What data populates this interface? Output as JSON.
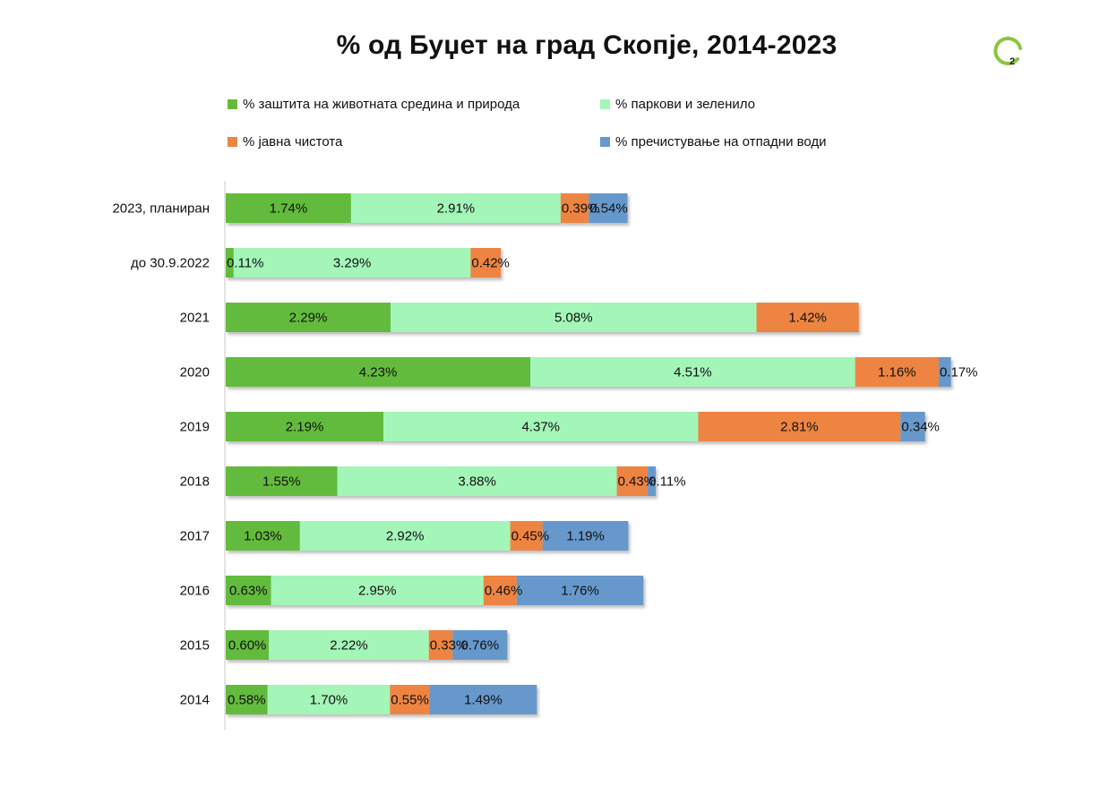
{
  "page": {
    "title": "% од Буџет на град Скопје, 2014-2023",
    "page_number": "2",
    "badge_color": "#8cc63f"
  },
  "chart_data": {
    "type": "bar",
    "orientation": "horizontal",
    "stacked": true,
    "title": "% од Буџет на град Скопје, 2014-2023",
    "xlabel": "",
    "ylabel": "",
    "legend_position": "top",
    "categories": [
      "2023, планиран",
      "до 30.9.2022",
      "2021",
      "2020",
      "2019",
      "2018",
      "2017",
      "2016",
      "2015",
      "2014"
    ],
    "series": [
      {
        "name": "% заштита на животната средина и природа",
        "color": "#63bb3d",
        "values": [
          1.74,
          0.11,
          2.29,
          4.23,
          2.19,
          1.55,
          1.03,
          0.63,
          0.6,
          0.58
        ],
        "labels": [
          "1.74%",
          "0.11%",
          "2.29%",
          "4.23%",
          "2.19%",
          "1.55%",
          "1.03%",
          "0.63%",
          "0.60%",
          "0.58%"
        ]
      },
      {
        "name": "% паркови и зеленило",
        "color": "#a4f5b8",
        "values": [
          2.91,
          3.29,
          5.08,
          4.51,
          4.37,
          3.88,
          2.92,
          2.95,
          2.22,
          1.7
        ],
        "labels": [
          "2.91%",
          "3.29%",
          "5.08%",
          "4.51%",
          "4.37%",
          "3.88%",
          "2.92%",
          "2.95%",
          "2.22%",
          "1.70%"
        ]
      },
      {
        "name": "% јавна чистота",
        "color": "#ee8442",
        "values": [
          0.39,
          0.42,
          1.42,
          1.16,
          2.81,
          0.43,
          0.45,
          0.46,
          0.33,
          0.55
        ],
        "labels": [
          "0.39%",
          "0.42%",
          "1.42%",
          "1.16%",
          "2.81%",
          "0.43%",
          "0.45%",
          "0.46%",
          "0.33%",
          "0.55%"
        ]
      },
      {
        "name": "% пречистување на отпадни води",
        "color": "#6698cc",
        "values": [
          0.54,
          0,
          0,
          0.17,
          0.34,
          0.11,
          1.19,
          1.76,
          0.76,
          1.49
        ],
        "labels": [
          "0.54%",
          "",
          "",
          "0.17%",
          "0.34%",
          "0.11%",
          "1.19%",
          "1.76%",
          "0.76%",
          "1.49%"
        ]
      }
    ]
  }
}
